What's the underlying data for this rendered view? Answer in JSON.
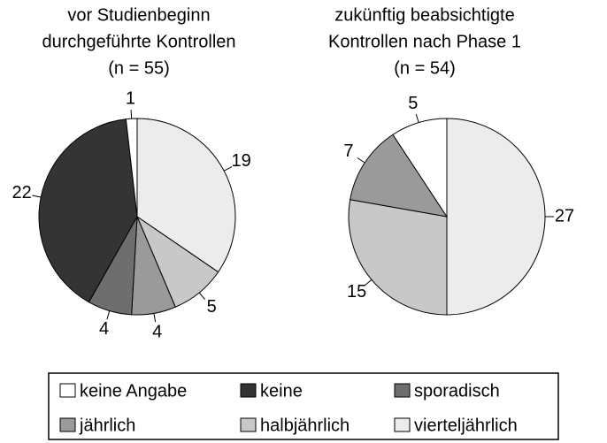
{
  "chart_data": [
    {
      "type": "pie",
      "title": [
        "vor Studienbeginn",
        "durchgeführte Kontrollen",
        "(n = 55)"
      ],
      "categories": [
        "vierteljährlich",
        "halbjährlich",
        "jährlich",
        "sporadisch",
        "keine",
        "keine Angabe"
      ],
      "values": [
        19,
        5,
        4,
        4,
        22,
        1
      ],
      "colors": [
        "#ececec",
        "#c8c8c8",
        "#9a9a9a",
        "#6e6e6e",
        "#343434",
        "#ffffff"
      ]
    },
    {
      "type": "pie",
      "title": [
        "zukünftig beabsichtigte",
        "Kontrollen nach Phase 1",
        "(n = 54)"
      ],
      "categories": [
        "vierteljährlich",
        "halbjährlich",
        "jährlich",
        "keine Angabe"
      ],
      "values": [
        27,
        15,
        7,
        5
      ],
      "colors": [
        "#ececec",
        "#c8c8c8",
        "#9a9a9a",
        "#ffffff"
      ]
    }
  ],
  "legend": [
    {
      "name": "keine Angabe",
      "color": "#ffffff"
    },
    {
      "name": "keine",
      "color": "#343434"
    },
    {
      "name": "sporadisch",
      "color": "#6e6e6e"
    },
    {
      "name": "jährlich",
      "color": "#9a9a9a"
    },
    {
      "name": "halbjährlich",
      "color": "#c8c8c8"
    },
    {
      "name": "vierteljährlich",
      "color": "#ececec"
    }
  ]
}
